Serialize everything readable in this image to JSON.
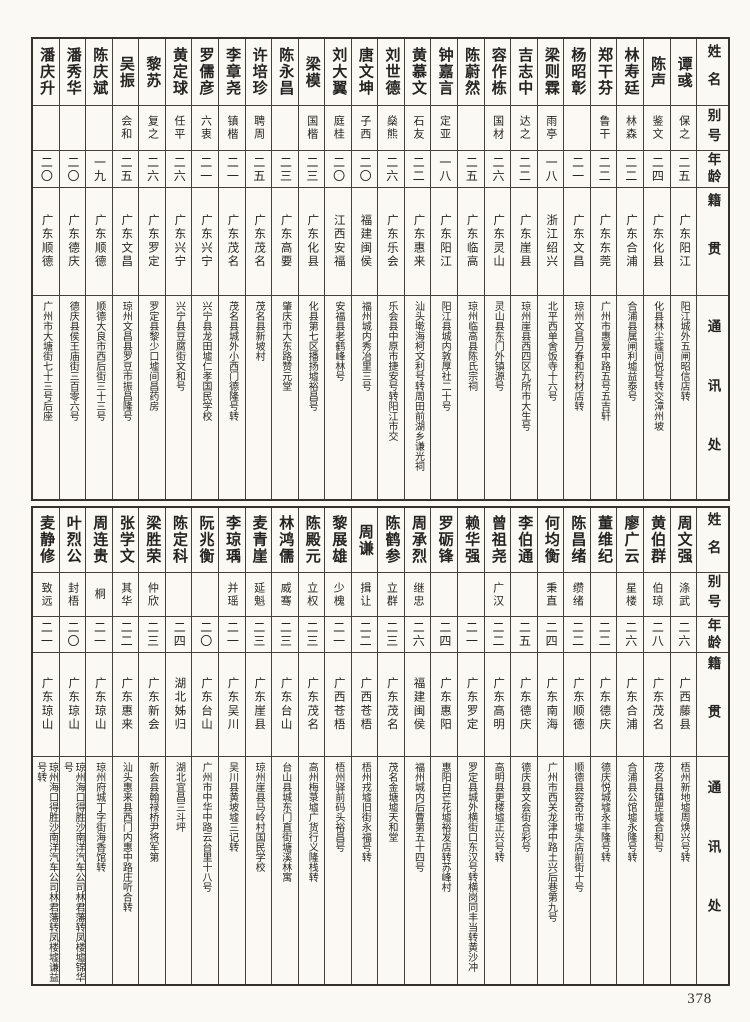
{
  "page": {
    "number": "378"
  },
  "row_headers": {
    "name": "姓名",
    "alias": "别号",
    "age": "年龄",
    "native": "籍贯",
    "address": "通讯处"
  },
  "tables": [
    {
      "entries": [
        {
          "name": "潘庆升",
          "alias": "",
          "age": "二〇",
          "native": "广东顺德",
          "address": "广州市大塘街七十三号后座"
        },
        {
          "name": "潘秀华",
          "alias": "",
          "age": "二〇",
          "native": "广东德庆",
          "address": "德庆县侯王庙街三百零六号"
        },
        {
          "name": "陈庆斌",
          "alias": "",
          "age": "一九",
          "native": "广东顺德",
          "address": "顺德大良市西后街三十三号"
        },
        {
          "name": "吴振",
          "alias": "会和",
          "age": "二五",
          "native": "广东文昌",
          "address": "琼州文昌县罗豆市振昌隆号"
        },
        {
          "name": "黎苏",
          "alias": "复之",
          "age": "二六",
          "native": "广东罗定",
          "address": "罗定县黎少口墟间昌药房"
        },
        {
          "name": "黄定球",
          "alias": "任平",
          "age": "二六",
          "native": "广东兴宁",
          "address": "兴宁县豆腐街文和号"
        },
        {
          "name": "罗儒彦",
          "alias": "六衷",
          "age": "二一",
          "native": "广东兴宁",
          "address": "兴宁县龙田墟仁孝国民学校"
        },
        {
          "name": "李章尧",
          "alias": "镇楷",
          "age": "二一",
          "native": "广东茂名",
          "address": "茂名县城外小西门德隆号转"
        },
        {
          "name": "许培珍",
          "alias": "聘周",
          "age": "二五",
          "native": "广东茂名",
          "address": "茂名县新坡村"
        },
        {
          "name": "陈永昌",
          "alias": "",
          "age": "二三",
          "native": "广东高要",
          "address": "肇庆市大东路赞元堂"
        },
        {
          "name": "梁模",
          "alias": "国楷",
          "age": "二三",
          "native": "广东化县",
          "address": "化县第七区播扬墟裕昌号"
        },
        {
          "name": "刘大翼",
          "alias": "庭桂",
          "age": "二〇",
          "native": "江西安福",
          "address": "安福县老鹤峰林号"
        },
        {
          "name": "唐文坤",
          "alias": "子西",
          "age": "二〇",
          "native": "福建闽侯",
          "address": "福州城内秀冶里三号"
        },
        {
          "name": "刘世德",
          "alias": "燊熊",
          "age": "二六",
          "native": "广东乐会",
          "address": "乐会县中原市捷安号转阳江市交"
        },
        {
          "name": "黄慕文",
          "alias": "石友",
          "age": "二二",
          "native": "广东惠来",
          "address": "汕头墘海柯文利号转周田前湖乡谦光祠"
        },
        {
          "name": "钟嘉言",
          "alias": "定亚",
          "age": "一八",
          "native": "广东阳江",
          "address": "阳江县城内敦厚社二十号"
        },
        {
          "name": "陈蔚然",
          "alias": "",
          "age": "二五",
          "native": "广东临高",
          "address": "琼州临高县陈氏宗祠"
        },
        {
          "name": "容作栋",
          "alias": "国材",
          "age": "二六",
          "native": "广东灵山",
          "address": "灵山县东门外镇源号"
        },
        {
          "name": "吉志中",
          "alias": "达之",
          "age": "二二",
          "native": "广东崖县",
          "address": "琼州崖县西四区九所市大生号"
        },
        {
          "name": "梁则霖",
          "alias": "雨亭",
          "age": "一八",
          "native": "浙江绍兴",
          "address": "北平西单舍饭寺十六号"
        },
        {
          "name": "杨昭彰",
          "alias": "",
          "age": "二一",
          "native": "广东文昌",
          "address": "琼州文昌万春和药材店转"
        },
        {
          "name": "郑干芬",
          "alias": "鲁干",
          "age": "二二",
          "native": "广东东莞",
          "address": "广州市惠爱中路五号五吉轩"
        },
        {
          "name": "林寿廷",
          "alias": "林森",
          "age": "二二",
          "native": "广东合浦",
          "address": "合浦县属闸利墟益泰号"
        },
        {
          "name": "陈声",
          "alias": "鉴文",
          "age": "二四",
          "native": "广东化县",
          "address": "化县林尘墟间悦号转交漳州坡"
        },
        {
          "name": "谭彧",
          "alias": "保之",
          "age": "二五",
          "native": "广东阳江",
          "address": "阳江城外五闸昭信店转"
        }
      ]
    },
    {
      "entries": [
        {
          "name": "麦静修",
          "alias": "致远",
          "age": "二一",
          "native": "广东琼山",
          "address": "琼州海口得胜沙南洋汽车公司林君藩转凤楼墟谦益号转"
        },
        {
          "name": "叶烈公",
          "alias": "封梧",
          "age": "二〇",
          "native": "广东琼山",
          "address": "琼州海口得胜沙南洋汽车公司林君藩转凤楼墟锦华号"
        },
        {
          "name": "周连贵",
          "alias": "桐",
          "age": "二一",
          "native": "广东琼山",
          "address": "琼州府城丁字街海香馆转"
        },
        {
          "name": "张学文",
          "alias": "其华",
          "age": "二二",
          "native": "广东惠来",
          "address": "汕头惠来县西门内惠中路庄听合转"
        },
        {
          "name": "梁胜荣",
          "alias": "仲欣",
          "age": "二三",
          "native": "广东新会",
          "address": "新会县翰禄桥尹将军第"
        },
        {
          "name": "陈定科",
          "alias": "",
          "age": "二四",
          "native": "湖北姊归",
          "address": "湖北宜昌三斗坪"
        },
        {
          "name": "阮兆衡",
          "alias": "",
          "age": "二〇",
          "native": "广东台山",
          "address": "广州市中华中路云台里十八号"
        },
        {
          "name": "李琼瑀",
          "alias": "并瑶",
          "age": "二一",
          "native": "广东吴川",
          "address": "吴川县黄坡墟三记转"
        },
        {
          "name": "麦青崖",
          "alias": "延魁",
          "age": "二三",
          "native": "广东崖县",
          "address": "琼州崖县马岭村国民学校"
        },
        {
          "name": "林鸿儒",
          "alias": "威骞",
          "age": "二三",
          "native": "广东台山",
          "address": "台山县城东门直街塘溪林寓"
        },
        {
          "name": "陈殿元",
          "alias": "立权",
          "age": "二三",
          "native": "广东茂名",
          "address": "高州梅菉墟广货行义隆栈转"
        },
        {
          "name": "黎展雄",
          "alias": "少槐",
          "age": "二一",
          "native": "广西苍梧",
          "address": "梧州驿前码头裕昌号"
        },
        {
          "name": "周谦",
          "alias": "揖让",
          "age": "二二",
          "native": "广西苍梧",
          "address": "梧州戎墟旧街永福号转"
        },
        {
          "name": "陈鹤参",
          "alias": "立群",
          "age": "二三",
          "native": "广东茂名",
          "address": "茂名金塘墟天和堂"
        },
        {
          "name": "周承烈",
          "alias": "继忠",
          "age": "二六",
          "native": "福建闽侯",
          "address": "福州城内后曹第五十四号"
        },
        {
          "name": "罗砺锋",
          "alias": "",
          "age": "二四",
          "native": "广东惠阳",
          "address": "惠阳白芒花墟裕发店转苏峰村"
        },
        {
          "name": "赖华强",
          "alias": "",
          "age": "二一",
          "native": "广东罗定",
          "address": "罗定县城外横街口东汉号转横岗同丰当转黄沙冲"
        },
        {
          "name": "曾祖尧",
          "alias": "广汉",
          "age": "二二",
          "native": "广东高明",
          "address": "高明县更楼墟正兴号转"
        },
        {
          "name": "李伯通",
          "alias": "",
          "age": "二五",
          "native": "广东德庆",
          "address": "德庆县文会街合彩号"
        },
        {
          "name": "何均衡",
          "alias": "秉直",
          "age": "二四",
          "native": "广东南海",
          "address": "广州市西关龙津中路土兴后巷第九号"
        },
        {
          "name": "陈昌绪",
          "alias": "缵绪",
          "age": "二二",
          "native": "广东顺德",
          "address": "顺德县容奇市墟头店前街十号"
        },
        {
          "name": "董维纪",
          "alias": "",
          "age": "二二",
          "native": "广东德庆",
          "address": "德庆悦城墟永丰隆号转"
        },
        {
          "name": "廖广云",
          "alias": "星楼",
          "age": "二六",
          "native": "广东合浦",
          "address": "合浦县公馆墟永隆号转"
        },
        {
          "name": "黄伯群",
          "alias": "伯琼",
          "age": "二八",
          "native": "广东茂名",
          "address": "茂名县镇罡墟合和号"
        },
        {
          "name": "周文强",
          "alias": "涤武",
          "age": "二六",
          "native": "广西藤县",
          "address": "梧州新地墟周焕兴号转"
        }
      ]
    }
  ]
}
